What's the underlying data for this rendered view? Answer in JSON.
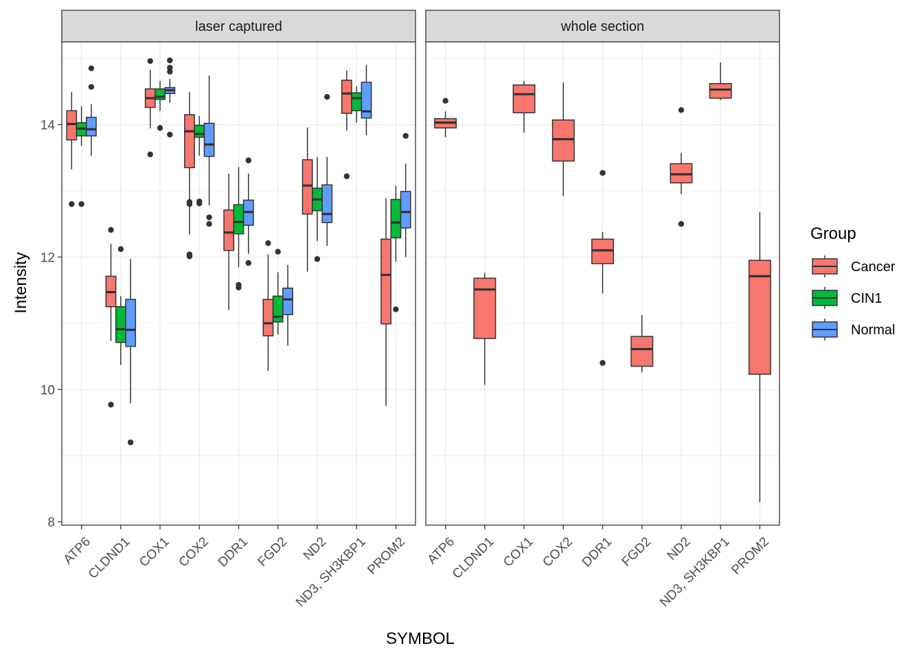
{
  "chart_data": {
    "type": "boxplot",
    "xlabel": "SYMBOL",
    "ylabel": "Intensity",
    "ylim": [
      7.95,
      15.25
    ],
    "yticks": [
      8,
      10,
      12,
      14
    ],
    "grid": true,
    "categories": [
      "ATP6",
      "CLDND1",
      "COX1",
      "COX2",
      "DDR1",
      "FGD2",
      "ND2",
      "ND3, SH3KBP1",
      "PROM2"
    ],
    "legend": {
      "title": "Group",
      "placement": "right",
      "entries": [
        {
          "name": "Cancer",
          "color": "#F8766D"
        },
        {
          "name": "CIN1",
          "color": "#00BA38"
        },
        {
          "name": "Normal",
          "color": "#619CFF"
        }
      ]
    },
    "panels": [
      {
        "title": "laser captured",
        "boxes": [
          {
            "category": "ATP6",
            "group": "Cancer",
            "min": 13.32,
            "q1": 13.77,
            "median": 14.01,
            "q3": 14.21,
            "max": 14.49,
            "outliers": [
              12.8
            ]
          },
          {
            "category": "ATP6",
            "group": "CIN1",
            "min": 13.68,
            "q1": 13.83,
            "median": 13.94,
            "q3": 14.03,
            "max": 14.28,
            "outliers": [
              12.8
            ]
          },
          {
            "category": "ATP6",
            "group": "Normal",
            "min": 13.53,
            "q1": 13.83,
            "median": 13.93,
            "q3": 14.11,
            "max": 14.31,
            "outliers": [
              14.85,
              14.57
            ]
          },
          {
            "category": "CLDND1",
            "group": "Cancer",
            "min": 10.73,
            "q1": 11.25,
            "median": 11.47,
            "q3": 11.71,
            "max": 12.2,
            "outliers": [
              12.41,
              9.77
            ]
          },
          {
            "category": "CLDND1",
            "group": "CIN1",
            "min": 10.37,
            "q1": 10.71,
            "median": 10.91,
            "q3": 11.25,
            "max": 11.41,
            "outliers": [
              12.12
            ]
          },
          {
            "category": "CLDND1",
            "group": "Normal",
            "min": 9.79,
            "q1": 10.65,
            "median": 10.9,
            "q3": 11.36,
            "max": 11.97,
            "outliers": [
              9.2
            ]
          },
          {
            "category": "COX1",
            "group": "Cancer",
            "min": 13.94,
            "q1": 14.26,
            "median": 14.4,
            "q3": 14.54,
            "max": 14.83,
            "outliers": [
              14.96,
              13.55
            ]
          },
          {
            "category": "COX1",
            "group": "CIN1",
            "min": 14.21,
            "q1": 14.38,
            "median": 14.42,
            "q3": 14.54,
            "max": 14.66,
            "outliers": [
              13.95
            ]
          },
          {
            "category": "COX1",
            "group": "Normal",
            "min": 14.33,
            "q1": 14.47,
            "median": 14.52,
            "q3": 14.56,
            "max": 14.69,
            "outliers": [
              14.97,
              14.86,
              14.8,
              13.85
            ]
          },
          {
            "category": "COX2",
            "group": "Cancer",
            "min": 12.34,
            "q1": 13.35,
            "median": 13.9,
            "q3": 14.15,
            "max": 14.49,
            "outliers": [
              12.83,
              12.8,
              12.04,
              12.01
            ]
          },
          {
            "category": "COX2",
            "group": "CIN1",
            "min": 13.53,
            "q1": 13.81,
            "median": 13.86,
            "q3": 13.99,
            "max": 14.13,
            "outliers": [
              12.84,
              12.81
            ]
          },
          {
            "category": "COX2",
            "group": "Normal",
            "min": 12.78,
            "q1": 13.52,
            "median": 13.7,
            "q3": 14.02,
            "max": 14.74,
            "outliers": [
              12.6,
              12.5
            ]
          },
          {
            "category": "DDR1",
            "group": "Cancer",
            "min": 11.2,
            "q1": 12.1,
            "median": 12.37,
            "q3": 12.71,
            "max": 13.26,
            "outliers": []
          },
          {
            "category": "DDR1",
            "group": "CIN1",
            "min": 11.85,
            "q1": 12.35,
            "median": 12.53,
            "q3": 12.79,
            "max": 13.36,
            "outliers": [
              11.58,
              11.54
            ]
          },
          {
            "category": "DDR1",
            "group": "Normal",
            "min": 12.05,
            "q1": 12.48,
            "median": 12.68,
            "q3": 12.86,
            "max": 13.26,
            "outliers": [
              13.46,
              11.91
            ]
          },
          {
            "category": "FGD2",
            "group": "Cancer",
            "min": 10.28,
            "q1": 10.81,
            "median": 11.0,
            "q3": 11.36,
            "max": 12.04,
            "outliers": [
              12.21
            ]
          },
          {
            "category": "FGD2",
            "group": "CIN1",
            "min": 10.83,
            "q1": 11.02,
            "median": 11.1,
            "q3": 11.41,
            "max": 11.77,
            "outliers": [
              12.08
            ]
          },
          {
            "category": "FGD2",
            "group": "Normal",
            "min": 10.66,
            "q1": 11.13,
            "median": 11.36,
            "q3": 11.53,
            "max": 11.88,
            "outliers": []
          },
          {
            "category": "ND2",
            "group": "Cancer",
            "min": 11.78,
            "q1": 12.65,
            "median": 13.08,
            "q3": 13.47,
            "max": 13.96,
            "outliers": []
          },
          {
            "category": "ND2",
            "group": "CIN1",
            "min": 12.24,
            "q1": 12.7,
            "median": 12.87,
            "q3": 13.04,
            "max": 13.51,
            "outliers": [
              11.97
            ]
          },
          {
            "category": "ND2",
            "group": "Normal",
            "min": 12.17,
            "q1": 12.52,
            "median": 12.65,
            "q3": 13.09,
            "max": 13.51,
            "outliers": [
              14.42
            ]
          },
          {
            "category": "ND3, SH3KBP1",
            "group": "Cancer",
            "min": 13.91,
            "q1": 14.17,
            "median": 14.47,
            "q3": 14.67,
            "max": 14.82,
            "outliers": [
              13.22
            ]
          },
          {
            "category": "ND3, SH3KBP1",
            "group": "CIN1",
            "min": 14.03,
            "q1": 14.21,
            "median": 14.4,
            "q3": 14.48,
            "max": 14.58,
            "outliers": []
          },
          {
            "category": "ND3, SH3KBP1",
            "group": "Normal",
            "min": 13.84,
            "q1": 14.1,
            "median": 14.2,
            "q3": 14.64,
            "max": 14.9,
            "outliers": []
          },
          {
            "category": "PROM2",
            "group": "Cancer",
            "min": 9.75,
            "q1": 10.99,
            "median": 11.73,
            "q3": 12.27,
            "max": 12.89,
            "outliers": []
          },
          {
            "category": "PROM2",
            "group": "CIN1",
            "min": 11.93,
            "q1": 12.29,
            "median": 12.52,
            "q3": 12.87,
            "max": 13.08,
            "outliers": [
              11.21
            ]
          },
          {
            "category": "PROM2",
            "group": "Normal",
            "min": 12.0,
            "q1": 12.44,
            "median": 12.68,
            "q3": 12.99,
            "max": 13.41,
            "outliers": [
              13.83
            ]
          }
        ]
      },
      {
        "title": "whole section",
        "boxes": [
          {
            "category": "ATP6",
            "group": "Cancer",
            "min": 13.81,
            "q1": 13.95,
            "median": 14.03,
            "q3": 14.09,
            "max": 14.2,
            "outliers": [
              14.36
            ]
          },
          {
            "category": "CLDND1",
            "group": "Cancer",
            "min": 10.07,
            "q1": 10.77,
            "median": 11.51,
            "q3": 11.68,
            "max": 11.76,
            "outliers": []
          },
          {
            "category": "COX1",
            "group": "Cancer",
            "min": 13.88,
            "q1": 14.18,
            "median": 14.46,
            "q3": 14.6,
            "max": 14.66,
            "outliers": []
          },
          {
            "category": "COX2",
            "group": "Cancer",
            "min": 12.92,
            "q1": 13.45,
            "median": 13.78,
            "q3": 14.07,
            "max": 14.64,
            "outliers": []
          },
          {
            "category": "DDR1",
            "group": "Cancer",
            "min": 11.45,
            "q1": 11.9,
            "median": 12.1,
            "q3": 12.27,
            "max": 12.38,
            "outliers": [
              13.27,
              10.4
            ]
          },
          {
            "category": "FGD2",
            "group": "Cancer",
            "min": 10.26,
            "q1": 10.35,
            "median": 10.61,
            "q3": 10.8,
            "max": 11.12,
            "outliers": []
          },
          {
            "category": "ND2",
            "group": "Cancer",
            "min": 12.95,
            "q1": 13.12,
            "median": 13.25,
            "q3": 13.41,
            "max": 13.57,
            "outliers": [
              14.22,
              12.5
            ]
          },
          {
            "category": "ND3, SH3KBP1",
            "group": "Cancer",
            "min": 14.37,
            "q1": 14.4,
            "median": 14.53,
            "q3": 14.62,
            "max": 14.94,
            "outliers": []
          },
          {
            "category": "PROM2",
            "group": "Cancer",
            "min": 8.3,
            "q1": 10.23,
            "median": 11.71,
            "q3": 11.95,
            "max": 12.68,
            "outliers": []
          }
        ]
      }
    ]
  }
}
